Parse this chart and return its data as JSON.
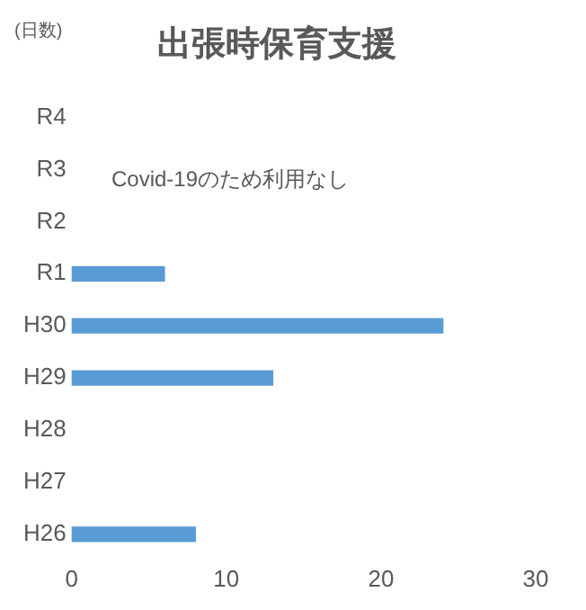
{
  "chart_data": {
    "type": "bar",
    "orientation": "horizontal",
    "title": "出張時保育支援",
    "xlabel": "(日数)",
    "categories": [
      "R4",
      "R3",
      "R2",
      "R1",
      "H30",
      "H29",
      "H28",
      "H27",
      "H26"
    ],
    "values": [
      null,
      null,
      null,
      6,
      24,
      13,
      null,
      null,
      8
    ],
    "color": "#5b9bd5",
    "xlim": [
      0,
      30
    ],
    "xticks": [
      0,
      10,
      20,
      30
    ],
    "grid": false,
    "legend": false,
    "annotations": [
      "Covid-19のため利用なし"
    ]
  }
}
